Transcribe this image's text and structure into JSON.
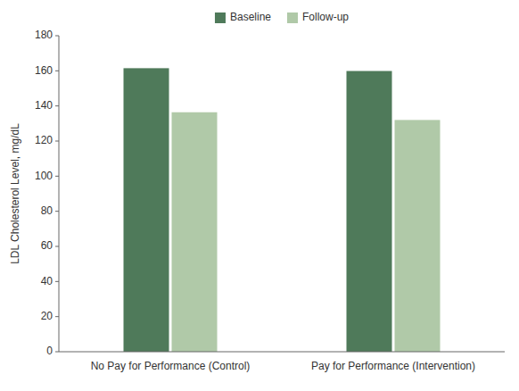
{
  "chart_data": {
    "type": "bar",
    "categories": [
      "No Pay for Performance (Control)",
      "Pay for Performance (Intervention)"
    ],
    "series": [
      {
        "name": "Baseline",
        "color": "#4f7a5a",
        "values": [
          161.5,
          159.9
        ]
      },
      {
        "name": "Follow-up",
        "color": "#b0c9a8",
        "values": [
          136.4,
          132.0
        ]
      }
    ],
    "ylabel": "LDL Cholesterol Level, mg/dL",
    "ylim": [
      0,
      180
    ],
    "yticks": [
      0,
      20,
      40,
      60,
      80,
      100,
      120,
      140,
      160,
      180
    ],
    "grid": false,
    "legend": "top"
  }
}
